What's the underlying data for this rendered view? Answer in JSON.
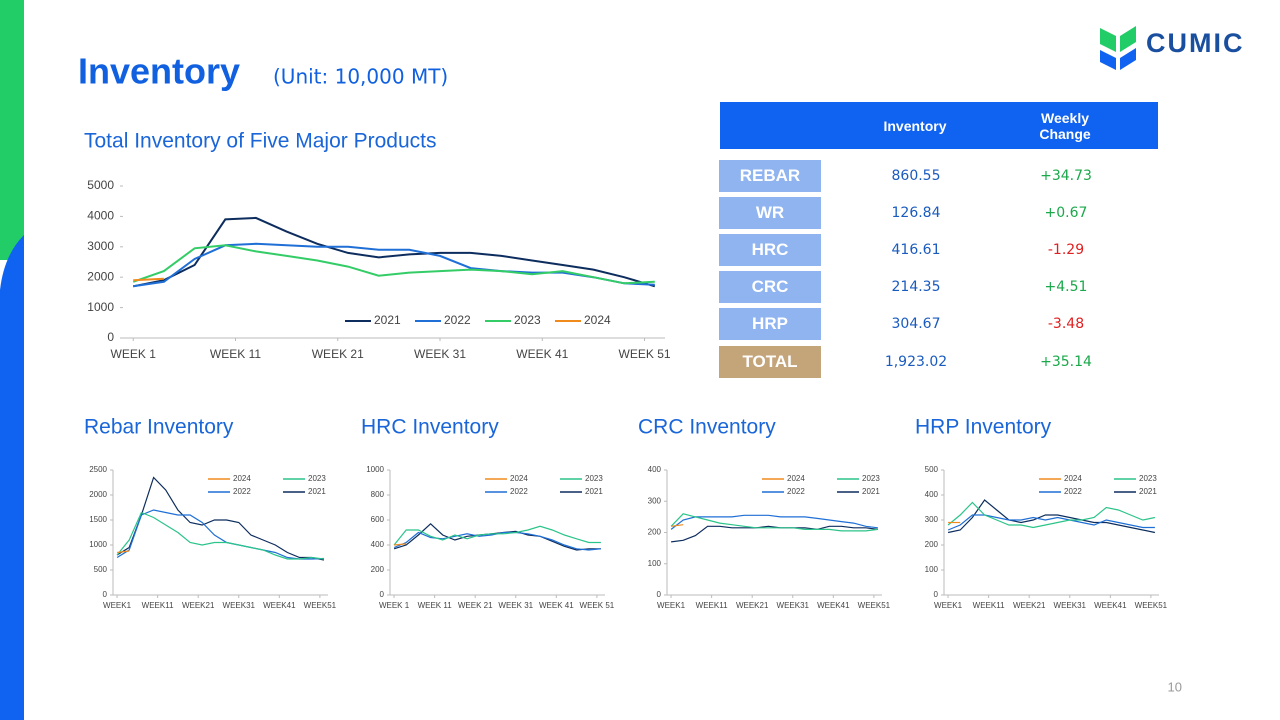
{
  "header": {
    "title": "Inventory",
    "subtitle": "(Unit: 10,000 MT)",
    "logo": "CUMIC"
  },
  "table": {
    "columns": [
      "Inventory",
      "Weekly Change"
    ],
    "rows": [
      [
        "REBAR",
        "860.55",
        "+34.73"
      ],
      [
        "WR",
        "126.84",
        "+0.67"
      ],
      [
        "HRC",
        "416.61",
        "-1.29"
      ],
      [
        "CRC",
        "214.35",
        "+4.51"
      ],
      [
        "HRP",
        "304.67",
        "-3.48"
      ],
      [
        "TOTAL",
        "1,923.02",
        "+35.14"
      ]
    ]
  },
  "page_number": "10",
  "chart_data": [
    {
      "type": "line",
      "title": "Total Inventory of Five Major Products",
      "legend": "bottom",
      "x": [
        1,
        4,
        7,
        10,
        13,
        16,
        19,
        22,
        25,
        28,
        31,
        34,
        37,
        40,
        43,
        46,
        49,
        52
      ],
      "xlim": [
        0,
        53
      ],
      "xticks": [
        {
          "value": 1,
          "label": "WEEK 1"
        },
        {
          "value": 11,
          "label": "WEEK 11"
        },
        {
          "value": 21,
          "label": "WEEK 21"
        },
        {
          "value": 31,
          "label": "WEEK 31"
        },
        {
          "value": 41,
          "label": "WEEK 41"
        },
        {
          "value": 51,
          "label": "WEEK 51"
        }
      ],
      "ylim": [
        0,
        5000
      ],
      "yticks": [
        0,
        1000,
        2000,
        3000,
        4000,
        5000
      ],
      "series": [
        {
          "name": "2021",
          "color": "#0d2d5e",
          "values": [
            1700,
            1900,
            2400,
            3900,
            3950,
            3500,
            3100,
            2800,
            2650,
            2750,
            2800,
            2800,
            2700,
            2550,
            2400,
            2250,
            2000,
            1700
          ]
        },
        {
          "name": "2022",
          "color": "#1f6fd6",
          "values": [
            1700,
            1850,
            2600,
            3050,
            3100,
            3050,
            3000,
            3000,
            2900,
            2900,
            2700,
            2300,
            2200,
            2150,
            2150,
            2000,
            1800,
            1750
          ]
        },
        {
          "name": "2023",
          "color": "#33cc66",
          "values": [
            1850,
            2200,
            2950,
            3050,
            2850,
            2700,
            2550,
            2350,
            2050,
            2150,
            2200,
            2250,
            2200,
            2100,
            2200,
            2000,
            1800,
            1850
          ]
        },
        {
          "name": "2024",
          "color": "#f08a1c",
          "values": [
            1900,
            1950,
            null,
            null,
            null,
            null,
            null,
            null,
            null,
            null,
            null,
            null,
            null,
            null,
            null,
            null,
            null,
            null
          ]
        }
      ]
    },
    {
      "type": "line",
      "title": "Rebar Inventory",
      "legend": "top-right",
      "x": [
        1,
        4,
        7,
        10,
        13,
        16,
        19,
        22,
        25,
        28,
        31,
        34,
        37,
        40,
        43,
        46,
        49,
        52
      ],
      "xlim": [
        0,
        53
      ],
      "xticks": [
        {
          "value": 1,
          "label": "WEEK1"
        },
        {
          "value": 11,
          "label": "WEEK11"
        },
        {
          "value": 21,
          "label": "WEEK21"
        },
        {
          "value": 31,
          "label": "WEEK31"
        },
        {
          "value": 41,
          "label": "WEEK41"
        },
        {
          "value": 51,
          "label": "WEEK51"
        }
      ],
      "ylim": [
        0,
        2500
      ],
      "yticks": [
        0,
        500,
        1000,
        1500,
        2000,
        2500
      ],
      "series": [
        {
          "name": "2021",
          "color": "#0d2d5e",
          "values": [
            800,
            950,
            1600,
            2350,
            2100,
            1700,
            1450,
            1400,
            1500,
            1500,
            1450,
            1200,
            1100,
            1000,
            850,
            750,
            750,
            700
          ]
        },
        {
          "name": "2022",
          "color": "#1f6fd6",
          "values": [
            750,
            900,
            1600,
            1700,
            1650,
            1600,
            1600,
            1450,
            1200,
            1050,
            1000,
            950,
            900,
            850,
            750,
            720,
            720,
            730
          ]
        },
        {
          "name": "2023",
          "color": "#2bc48a",
          "values": [
            800,
            1100,
            1650,
            1550,
            1400,
            1250,
            1050,
            1000,
            1050,
            1050,
            1000,
            950,
            900,
            800,
            720,
            720,
            750,
            720
          ]
        },
        {
          "name": "2024",
          "color": "#f08a1c",
          "values": [
            850,
            880,
            null,
            null,
            null,
            null,
            null,
            null,
            null,
            null,
            null,
            null,
            null,
            null,
            null,
            null,
            null,
            null
          ]
        }
      ]
    },
    {
      "type": "line",
      "title": "HRC Inventory",
      "legend": "top-right",
      "x": [
        1,
        4,
        7,
        10,
        13,
        16,
        19,
        22,
        25,
        28,
        31,
        34,
        37,
        40,
        43,
        46,
        49,
        52
      ],
      "xlim": [
        0,
        53
      ],
      "xticks": [
        {
          "value": 1,
          "label": "WEEK 1"
        },
        {
          "value": 11,
          "label": "WEEK 11"
        },
        {
          "value": 21,
          "label": "WEEK 21"
        },
        {
          "value": 31,
          "label": "WEEK 31"
        },
        {
          "value": 41,
          "label": "WEEK 41"
        },
        {
          "value": 51,
          "label": "WEEK 51"
        }
      ],
      "ylim": [
        0,
        1000
      ],
      "yticks": [
        0,
        200,
        400,
        600,
        800,
        1000
      ],
      "series": [
        {
          "name": "2021",
          "color": "#0d2d5e",
          "values": [
            370,
            400,
            480,
            570,
            480,
            440,
            470,
            480,
            490,
            500,
            510,
            480,
            470,
            430,
            390,
            360,
            370,
            370
          ]
        },
        {
          "name": "2022",
          "color": "#1f6fd6",
          "values": [
            380,
            420,
            500,
            460,
            450,
            470,
            490,
            470,
            480,
            500,
            500,
            490,
            470,
            440,
            400,
            370,
            360,
            370
          ]
        },
        {
          "name": "2023",
          "color": "#2bc48a",
          "values": [
            400,
            520,
            520,
            470,
            440,
            480,
            450,
            480,
            490,
            490,
            500,
            520,
            550,
            520,
            480,
            450,
            420,
            420
          ]
        },
        {
          "name": "2024",
          "color": "#f08a1c",
          "values": [
            400,
            410,
            null,
            null,
            null,
            null,
            null,
            null,
            null,
            null,
            null,
            null,
            null,
            null,
            null,
            null,
            null,
            null
          ]
        }
      ]
    },
    {
      "type": "line",
      "title": "CRC Inventory",
      "legend": "top-right",
      "x": [
        1,
        4,
        7,
        10,
        13,
        16,
        19,
        22,
        25,
        28,
        31,
        34,
        37,
        40,
        43,
        46,
        49,
        52
      ],
      "xlim": [
        0,
        53
      ],
      "xticks": [
        {
          "value": 1,
          "label": "WEEK1"
        },
        {
          "value": 11,
          "label": "WEEK11"
        },
        {
          "value": 21,
          "label": "WEEK21"
        },
        {
          "value": 31,
          "label": "WEEK31"
        },
        {
          "value": 41,
          "label": "WEEK41"
        },
        {
          "value": 51,
          "label": "WEEK51"
        }
      ],
      "ylim": [
        0,
        400
      ],
      "yticks": [
        0,
        100,
        200,
        300,
        400
      ],
      "series": [
        {
          "name": "2021",
          "color": "#0d2d5e",
          "values": [
            170,
            175,
            190,
            220,
            220,
            215,
            215,
            215,
            220,
            215,
            215,
            215,
            210,
            220,
            220,
            215,
            215,
            210
          ]
        },
        {
          "name": "2022",
          "color": "#1f6fd6",
          "values": [
            210,
            240,
            250,
            250,
            250,
            250,
            255,
            255,
            255,
            250,
            250,
            250,
            245,
            240,
            235,
            230,
            220,
            215
          ]
        },
        {
          "name": "2023",
          "color": "#2bc48a",
          "values": [
            220,
            260,
            250,
            240,
            230,
            225,
            220,
            215,
            215,
            215,
            215,
            210,
            210,
            210,
            205,
            205,
            205,
            210
          ]
        },
        {
          "name": "2024",
          "color": "#f08a1c",
          "values": [
            220,
            225,
            null,
            null,
            null,
            null,
            null,
            null,
            null,
            null,
            null,
            null,
            null,
            null,
            null,
            null,
            null,
            null
          ]
        }
      ]
    },
    {
      "type": "line",
      "title": "HRP Inventory",
      "legend": "top-right",
      "x": [
        1,
        4,
        7,
        10,
        13,
        16,
        19,
        22,
        25,
        28,
        31,
        34,
        37,
        40,
        43,
        46,
        49,
        52
      ],
      "xlim": [
        0,
        53
      ],
      "xticks": [
        {
          "value": 1,
          "label": "WEEK1"
        },
        {
          "value": 11,
          "label": "WEEK11"
        },
        {
          "value": 21,
          "label": "WEEK21"
        },
        {
          "value": 31,
          "label": "WEEK31"
        },
        {
          "value": 41,
          "label": "WEEK41"
        },
        {
          "value": 51,
          "label": "WEEK51"
        }
      ],
      "ylim": [
        0,
        500
      ],
      "yticks": [
        0,
        100,
        200,
        300,
        400,
        500
      ],
      "series": [
        {
          "name": "2021",
          "color": "#0d2d5e",
          "values": [
            250,
            260,
            310,
            380,
            340,
            300,
            290,
            300,
            320,
            320,
            310,
            300,
            290,
            290,
            280,
            270,
            260,
            250
          ]
        },
        {
          "name": "2022",
          "color": "#1f6fd6",
          "values": [
            260,
            280,
            320,
            320,
            310,
            300,
            300,
            310,
            300,
            310,
            300,
            290,
            280,
            300,
            290,
            280,
            270,
            270
          ]
        },
        {
          "name": "2023",
          "color": "#2bc48a",
          "values": [
            280,
            320,
            370,
            320,
            300,
            280,
            280,
            270,
            280,
            290,
            300,
            300,
            310,
            350,
            340,
            320,
            300,
            310
          ]
        },
        {
          "name": "2024",
          "color": "#f08a1c",
          "values": [
            290,
            290,
            null,
            null,
            null,
            null,
            null,
            null,
            null,
            null,
            null,
            null,
            null,
            null,
            null,
            null,
            null,
            null
          ]
        }
      ]
    }
  ]
}
